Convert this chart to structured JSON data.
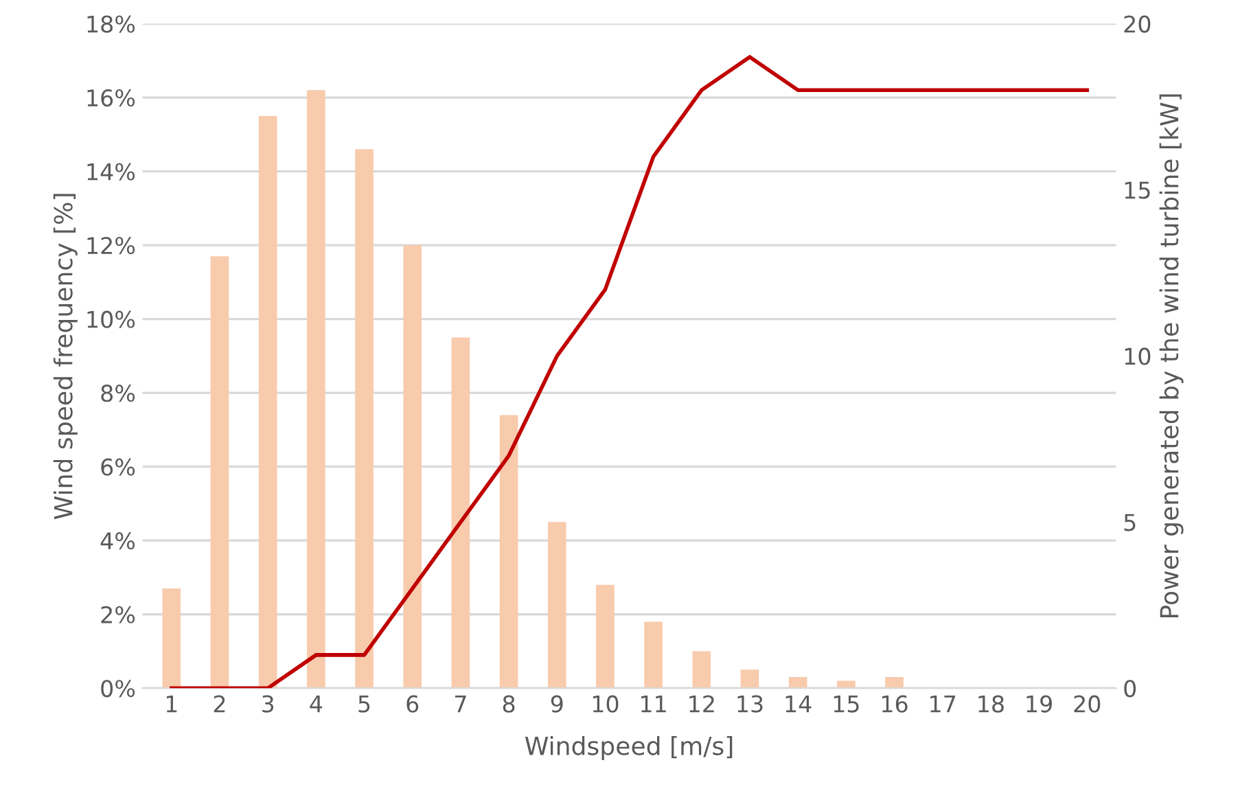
{
  "chart_data": {
    "type": "bar",
    "xlabel": "Windspeed [m/s]",
    "ylabel": "Wind speed frequency [%]",
    "y2label": "Power generated by the wind turbine [kW]",
    "categories": [
      "1",
      "2",
      "3",
      "4",
      "5",
      "6",
      "7",
      "8",
      "9",
      "10",
      "11",
      "12",
      "13",
      "14",
      "15",
      "16",
      "17",
      "18",
      "19",
      "20"
    ],
    "series": [
      {
        "color": "#f8cbad",
        "values": [
          2.7,
          11.7,
          15.5,
          16.2,
          14.6,
          12.0,
          9.5,
          7.4,
          4.5,
          2.8,
          1.8,
          1.0,
          0.5,
          0.3,
          0.2,
          0.3,
          0,
          0,
          0,
          0
        ]
      },
      {
        "type": "line",
        "axis": "y2",
        "color": "#c00000",
        "values": [
          0,
          0,
          0,
          1,
          1,
          3,
          5,
          7,
          10,
          12,
          16,
          18,
          19,
          18,
          18,
          18,
          18,
          18,
          18,
          18
        ]
      }
    ],
    "ylim": [
      0,
      18
    ],
    "yticks": [
      {
        "value": 0,
        "label": "0%"
      },
      {
        "value": 2,
        "label": "2%"
      },
      {
        "value": 4,
        "label": "4%"
      },
      {
        "value": 6,
        "label": "6%"
      },
      {
        "value": 8,
        "label": "8%"
      },
      {
        "value": 10,
        "label": "10%"
      },
      {
        "value": 12,
        "label": "12%"
      },
      {
        "value": 14,
        "label": "14%"
      },
      {
        "value": 16,
        "label": "16%"
      },
      {
        "value": 18,
        "label": "18%"
      }
    ],
    "y2lim": [
      0,
      20
    ],
    "y2ticks": [
      0,
      5,
      10,
      15,
      20
    ],
    "grid": "y",
    "legend": false
  }
}
